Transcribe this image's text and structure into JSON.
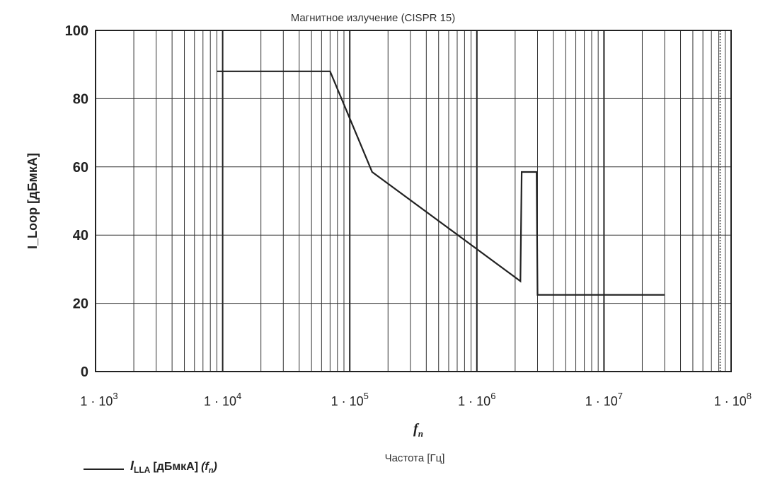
{
  "chart_data": {
    "type": "line",
    "title": "Магнитное излучение (CISPR 15)",
    "ylabel": "I_Loop [дБмкА]",
    "xlabel_var": "f",
    "xlabel_sub": "n",
    "xlabel": "Частота [Гц]",
    "x_scale": "log",
    "xlim": [
      1000,
      100000000
    ],
    "ylim": [
      0,
      100
    ],
    "grid": true,
    "legend_position": "bottom-left",
    "y_ticks": [
      "0",
      "20",
      "40",
      "60",
      "80",
      "100"
    ],
    "x_ticks": [
      {
        "value": 1000,
        "base": "1 · 10",
        "exp": "3"
      },
      {
        "value": 10000,
        "base": "1 · 10",
        "exp": "4"
      },
      {
        "value": 100000,
        "base": "1 · 10",
        "exp": "5"
      },
      {
        "value": 1000000,
        "base": "1 · 10",
        "exp": "6"
      },
      {
        "value": 10000000,
        "base": "1 · 10",
        "exp": "7"
      },
      {
        "value": 100000000,
        "base": "1 · 10",
        "exp": "8"
      }
    ],
    "series": [
      {
        "legend_parts": {
          "main": "I",
          "sub": "LLA",
          "unit": "[дБмкА]",
          "arg_var": "f",
          "arg_sub": "n"
        },
        "color": "#222222",
        "points": [
          [
            9000,
            88
          ],
          [
            70000,
            88
          ],
          [
            150000,
            58.5
          ],
          [
            2200000,
            26.5
          ],
          [
            2250000,
            58.5
          ],
          [
            2950000,
            58.5
          ],
          [
            3000000,
            22.5
          ],
          [
            30000000,
            22.5
          ]
        ]
      }
    ]
  }
}
